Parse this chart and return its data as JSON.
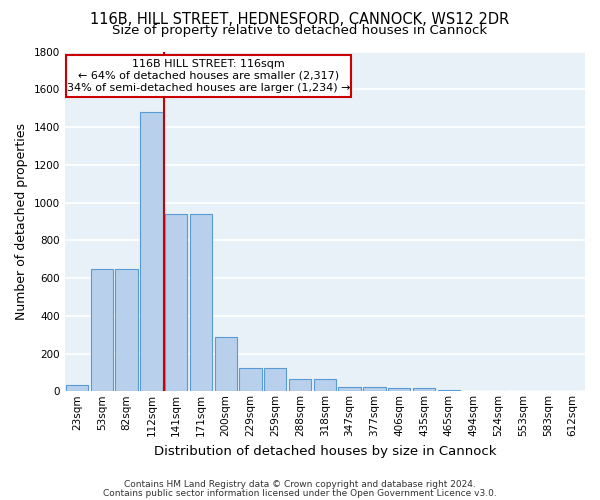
{
  "title1": "116B, HILL STREET, HEDNESFORD, CANNOCK, WS12 2DR",
  "title2": "Size of property relative to detached houses in Cannock",
  "xlabel": "Distribution of detached houses by size in Cannock",
  "ylabel": "Number of detached properties",
  "footer1": "Contains HM Land Registry data © Crown copyright and database right 2024.",
  "footer2": "Contains public sector information licensed under the Open Government Licence v3.0.",
  "annotation_title": "116B HILL STREET: 116sqm",
  "annotation_line2": "← 64% of detached houses are smaller (2,317)",
  "annotation_line3": "34% of semi-detached houses are larger (1,234) →",
  "bar_heights": [
    35,
    650,
    650,
    1480,
    940,
    940,
    290,
    125,
    125,
    65,
    65,
    25,
    25,
    15,
    15,
    5,
    0,
    0,
    0,
    0,
    0
  ],
  "bar_color": "#b8d0eb",
  "bar_edge_color": "#5b9bd5",
  "tick_labels": [
    "23sqm",
    "53sqm",
    "82sqm",
    "112sqm",
    "141sqm",
    "171sqm",
    "200sqm",
    "229sqm",
    "259sqm",
    "288sqm",
    "318sqm",
    "347sqm",
    "377sqm",
    "406sqm",
    "435sqm",
    "465sqm",
    "494sqm",
    "524sqm",
    "553sqm",
    "583sqm",
    "612sqm"
  ],
  "vline_x": 3.5,
  "vline_color": "#cc0000",
  "ylim": [
    0,
    1800
  ],
  "yticks": [
    0,
    200,
    400,
    600,
    800,
    1000,
    1200,
    1400,
    1600,
    1800
  ],
  "bg_color": "#e8f0f8",
  "grid_color": "#ffffff",
  "title1_fontsize": 10.5,
  "title2_fontsize": 9.5,
  "axis_label_fontsize": 9,
  "tick_fontsize": 7.5,
  "footer_fontsize": 6.5
}
